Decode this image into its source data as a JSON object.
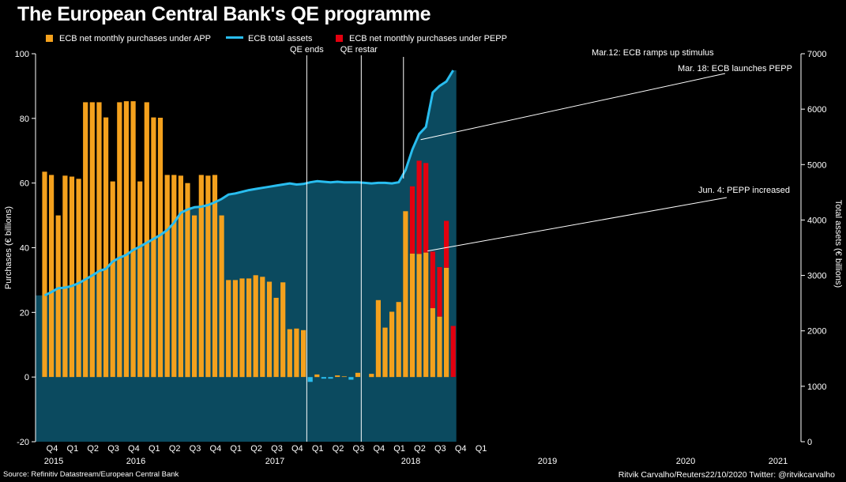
{
  "title": "The European Central Bank's QE programme",
  "source": "Source: Refinitiv Datastream/European Central Bank",
  "credit": "Ritvik Carvalho/Reuters22/10/2020 Twitter: @ritvikcarvalho",
  "colors": {
    "app": "#F4A11D",
    "pepp": "#E3000F",
    "assets_line": "#29BDEF",
    "assets_area": "#0B4A5F",
    "negative_bar": "#29BDEF",
    "background": "#000000"
  },
  "chart_data": {
    "type": "bar",
    "ylabel": "Purchases (€ billions)",
    "y2label": "Total assets (€ billions)",
    "ylim": [
      -20,
      100
    ],
    "y_ticks": [
      -20,
      0,
      20,
      40,
      60,
      80,
      100
    ],
    "y2lim": [
      0,
      7000
    ],
    "y2_ticks": [
      0,
      1000,
      2000,
      3000,
      4000,
      5000,
      6000,
      7000
    ],
    "quarter_labels": [
      "Q4",
      "Q1",
      "Q2",
      "Q3",
      "Q4",
      "Q1",
      "Q2",
      "Q3",
      "Q4",
      "Q1",
      "Q2",
      "Q3",
      "Q4",
      "Q1",
      "Q2",
      "Q3",
      "Q4",
      "Q1",
      "Q2",
      "Q3",
      "Q4",
      "Q1"
    ],
    "year_labels": [
      "2015",
      "2016",
      "2017",
      "2018",
      "2019",
      "2020",
      "2021"
    ],
    "legend": [
      {
        "key": "app",
        "label": "ECB net monthly purchases under APP"
      },
      {
        "key": "assets",
        "label": "ECB total assets"
      },
      {
        "key": "pepp",
        "label": "ECB net monthly purchases under PEPP"
      }
    ],
    "months": [
      "2015-10",
      "2015-11",
      "2015-12",
      "2016-01",
      "2016-02",
      "2016-03",
      "2016-04",
      "2016-05",
      "2016-06",
      "2016-07",
      "2016-08",
      "2016-09",
      "2016-10",
      "2016-11",
      "2016-12",
      "2017-01",
      "2017-02",
      "2017-03",
      "2017-04",
      "2017-05",
      "2017-06",
      "2017-07",
      "2017-08",
      "2017-09",
      "2017-10",
      "2017-11",
      "2017-12",
      "2018-01",
      "2018-02",
      "2018-03",
      "2018-04",
      "2018-05",
      "2018-06",
      "2018-07",
      "2018-08",
      "2018-09",
      "2018-10",
      "2018-11",
      "2018-12",
      "2019-01",
      "2019-02",
      "2019-03",
      "2019-04",
      "2019-05",
      "2019-06",
      "2019-07",
      "2019-08",
      "2019-09",
      "2019-10",
      "2019-11",
      "2019-12",
      "2020-01",
      "2020-02",
      "2020-03",
      "2020-04",
      "2020-05",
      "2020-06",
      "2020-07",
      "2020-08",
      "2020-09",
      "2020-10"
    ],
    "series": [
      {
        "name": "ECB net monthly purchases under APP",
        "values": [
          63.5,
          62.5,
          50,
          62.3,
          62,
          61.3,
          85,
          85,
          85,
          80.3,
          60.5,
          85,
          85.3,
          85.3,
          60.5,
          85,
          80.3,
          80.2,
          62.5,
          62.5,
          62.3,
          60,
          50,
          62.5,
          62.3,
          62.5,
          50,
          30,
          30,
          30.5,
          30.5,
          31.5,
          31,
          29.5,
          24.5,
          29.3,
          14.8,
          15,
          14.5,
          -1.5,
          0.8,
          -0.3,
          -0.3,
          0.5,
          0.2,
          -0.8,
          1.3,
          0,
          1,
          23.8,
          15.3,
          20.2,
          23.2,
          51.3,
          38.2,
          38.1,
          38.5,
          21.3,
          18.7,
          33.8,
          0
        ]
      },
      {
        "name": "ECB net monthly purchases under PEPP",
        "values": [
          0,
          0,
          0,
          0,
          0,
          0,
          0,
          0,
          0,
          0,
          0,
          0,
          0,
          0,
          0,
          0,
          0,
          0,
          0,
          0,
          0,
          0,
          0,
          0,
          0,
          0,
          0,
          0,
          0,
          0,
          0,
          0,
          0,
          0,
          0,
          0,
          0,
          0,
          0,
          0,
          0,
          0,
          0,
          0,
          0,
          0,
          0,
          0,
          0,
          0,
          0,
          0,
          0,
          0,
          20.8,
          28.8,
          27.7,
          17.5,
          15.3,
          14.5,
          15.8
        ]
      },
      {
        "name": "ECB total assets",
        "values": [
          2640,
          2700,
          2770,
          2780,
          2810,
          2860,
          2930,
          3000,
          3080,
          3120,
          3250,
          3320,
          3370,
          3460,
          3520,
          3590,
          3660,
          3730,
          3820,
          3950,
          4130,
          4190,
          4230,
          4240,
          4270,
          4320,
          4380,
          4460,
          4480,
          4510,
          4540,
          4560,
          4580,
          4600,
          4620,
          4640,
          4660,
          4640,
          4650,
          4680,
          4700,
          4690,
          4680,
          4690,
          4680,
          4680,
          4680,
          4670,
          4660,
          4670,
          4670,
          4660,
          4680,
          4900,
          5270,
          5550,
          5680,
          6300,
          6420,
          6500,
          6700
        ]
      }
    ],
    "annotations": [
      {
        "text": "QE ends",
        "month_index": 38.5
      },
      {
        "text": "QE restar",
        "month_index": 46.5
      },
      {
        "text": "Mar.12: ECB ramps up stimulus",
        "month_index": 52.7
      },
      {
        "text": "Mar. 18: ECB launches PEPP",
        "month_index": 55
      },
      {
        "text": "Jun. 4: PEPP increased",
        "month_index": 56
      }
    ]
  }
}
